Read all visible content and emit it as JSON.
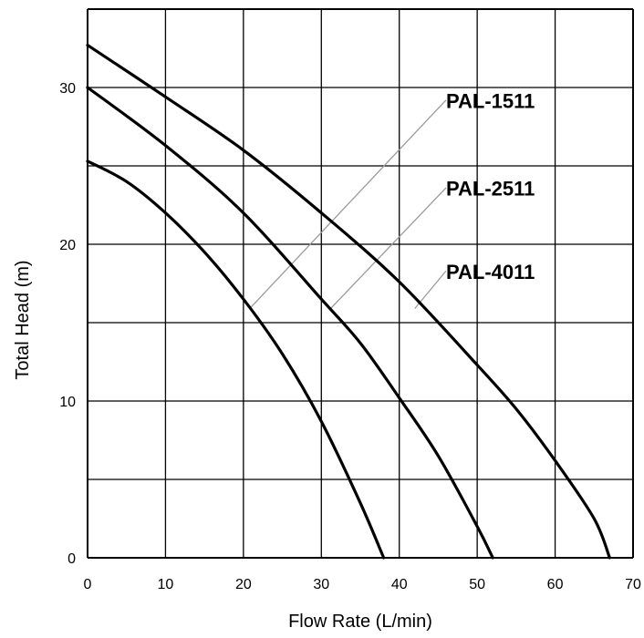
{
  "chart_data": {
    "type": "line",
    "xlabel": "Flow Rate (L/min)",
    "ylabel": "Total Head (m)",
    "xlim": [
      0,
      70
    ],
    "ylim": [
      0,
      35
    ],
    "xticks": [
      0,
      10,
      20,
      30,
      40,
      50,
      60,
      70
    ],
    "yticks": [
      0,
      10,
      20,
      30
    ],
    "x_gridlines": [
      0,
      10,
      20,
      30,
      40,
      50,
      60,
      70
    ],
    "y_gridlines": [
      0,
      5,
      10,
      15,
      20,
      25,
      30,
      35
    ],
    "grid": true,
    "legend": "inline labels with leader lines",
    "colors": {
      "curve": "#000000",
      "grid": "#000000",
      "leader": "#9a9a9a"
    },
    "series": [
      {
        "name": "PAL-1511",
        "x": [
          0,
          5,
          10,
          15,
          20,
          25,
          30,
          35,
          38
        ],
        "y": [
          25.3,
          24.0,
          22.0,
          19.5,
          16.5,
          13.0,
          8.7,
          3.5,
          0
        ]
      },
      {
        "name": "PAL-2511",
        "x": [
          0,
          10,
          20,
          30,
          35,
          40,
          45,
          50,
          52
        ],
        "y": [
          30.0,
          26.3,
          22.0,
          16.5,
          13.7,
          10.2,
          6.5,
          2.0,
          0
        ]
      },
      {
        "name": "PAL-4011",
        "x": [
          0,
          10,
          20,
          30,
          40,
          50,
          55,
          60,
          65,
          67
        ],
        "y": [
          32.7,
          29.4,
          26.0,
          22.0,
          17.6,
          12.3,
          9.5,
          6.2,
          2.5,
          0
        ]
      }
    ],
    "annotations": [
      {
        "text": "PAL-1511",
        "series": "PAL-1511",
        "text_at": [
          46.0,
          28.7
        ],
        "leader_from": [
          46.0,
          29.2
        ],
        "leader_to": [
          21.0,
          16.0
        ]
      },
      {
        "text": "PAL-2511",
        "series": "PAL-2511",
        "text_at": [
          46.0,
          23.1
        ],
        "leader_from": [
          46.0,
          23.6
        ],
        "leader_to": [
          31.0,
          15.8
        ]
      },
      {
        "text": "PAL-4011",
        "series": "PAL-4011",
        "text_at": [
          46.0,
          17.8
        ],
        "leader_from": [
          46.0,
          18.3
        ],
        "leader_to": [
          42.0,
          15.9
        ]
      }
    ]
  }
}
